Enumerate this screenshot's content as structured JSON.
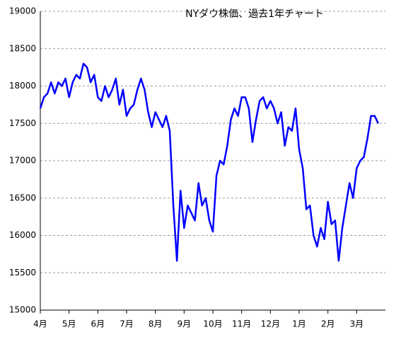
{
  "chart_data": {
    "type": "line",
    "title": "NYダウ株価、過去1年チャート",
    "categories": [
      "4月",
      null,
      null,
      null,
      null,
      null,
      null,
      null,
      "5月",
      null,
      null,
      null,
      null,
      null,
      null,
      null,
      "6月",
      null,
      null,
      null,
      null,
      null,
      null,
      null,
      "7月",
      null,
      null,
      null,
      null,
      null,
      null,
      null,
      "8月",
      null,
      null,
      null,
      null,
      null,
      null,
      null,
      "9月",
      null,
      null,
      null,
      null,
      null,
      null,
      null,
      "10月",
      null,
      null,
      null,
      null,
      null,
      null,
      null,
      "11月",
      null,
      null,
      null,
      null,
      null,
      null,
      null,
      "12月",
      null,
      null,
      null,
      null,
      null,
      null,
      null,
      "1月",
      null,
      null,
      null,
      null,
      null,
      null,
      null,
      "2月",
      null,
      null,
      null,
      null,
      null,
      null,
      null,
      "3月",
      null,
      null,
      null,
      null,
      null,
      null
    ],
    "series": [
      {
        "name": "NYダウ",
        "color": "#0000ff",
        "values": [
          17700,
          17850,
          17900,
          18050,
          17900,
          18050,
          18000,
          18100,
          17850,
          18050,
          18150,
          18100,
          18300,
          18250,
          18050,
          18150,
          17850,
          17800,
          18000,
          17850,
          17950,
          18100,
          17750,
          17950,
          17600,
          17700,
          17750,
          17950,
          18100,
          17950,
          17650,
          17450,
          17650,
          17550,
          17450,
          17600,
          17400,
          16400,
          15660,
          16600,
          16100,
          16400,
          16300,
          16200,
          16700,
          16400,
          16500,
          16200,
          16050,
          16800,
          17000,
          16950,
          17200,
          17550,
          17700,
          17600,
          17850,
          17850,
          17700,
          17250,
          17550,
          17800,
          17850,
          17700,
          17800,
          17700,
          17500,
          17650,
          17200,
          17450,
          17400,
          17700,
          17150,
          16900,
          16350,
          16400,
          16000,
          15850,
          16100,
          15950,
          16450,
          16150,
          16200,
          15660,
          16100,
          16400,
          16700,
          16500,
          16900,
          17000,
          17050,
          17300,
          17600,
          17600,
          17500
        ]
      }
    ],
    "ylim": [
      15000,
      19000
    ],
    "yticks": [
      15000,
      15500,
      16000,
      16500,
      17000,
      17500,
      18000,
      18500,
      19000
    ],
    "grid": true
  }
}
